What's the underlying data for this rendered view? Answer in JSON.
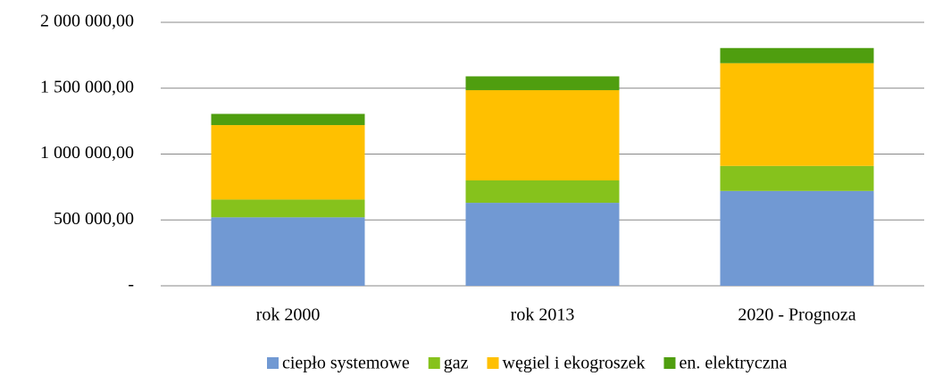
{
  "chart_data": {
    "type": "stacked_bar",
    "categories": [
      "rok 2000",
      "rok 2013",
      "2020 - Prognoza"
    ],
    "series": [
      {
        "name": "ciepło systemowe",
        "color": "#7199d3",
        "values": [
          520000,
          630000,
          720000
        ]
      },
      {
        "name": "gaz",
        "color": "#86c21c",
        "values": [
          135000,
          170000,
          190000
        ]
      },
      {
        "name": "węgiel i ekogroszek",
        "color": "#ffc000",
        "values": [
          565000,
          685000,
          780000
        ]
      },
      {
        "name": "en. elektryczna",
        "color": "#4f9e0f",
        "values": [
          85000,
          105000,
          115000
        ]
      }
    ],
    "ylim": [
      0,
      2000000
    ],
    "yticks": [
      {
        "value": 0,
        "label": "-"
      },
      {
        "value": 500000,
        "label": "500 000,00"
      },
      {
        "value": 1000000,
        "label": "1 000 000,00"
      },
      {
        "value": 1500000,
        "label": "1 500 000,00"
      },
      {
        "value": 2000000,
        "label": "2 000 000,00"
      }
    ],
    "grid": true,
    "legend": "bottom"
  }
}
